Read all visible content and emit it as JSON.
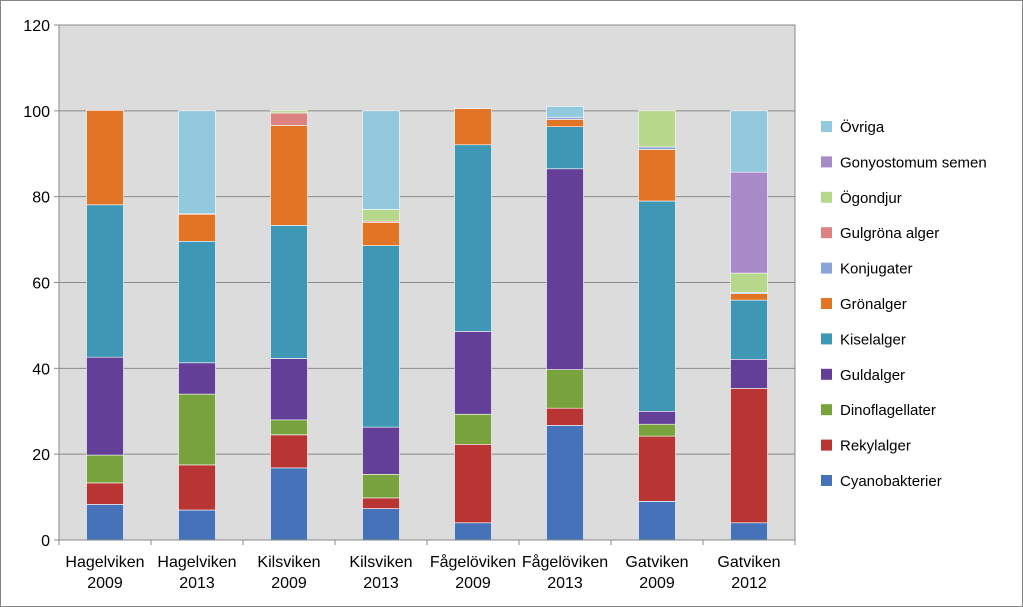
{
  "chart_data": {
    "type": "bar",
    "stacked": true,
    "categories": [
      [
        "Hagelviken",
        "2009"
      ],
      [
        "Hagelviken",
        "2013"
      ],
      [
        "Kilsviken",
        "2009"
      ],
      [
        "Kilsviken",
        "2013"
      ],
      [
        "Fågelöviken",
        "2009"
      ],
      [
        "Fågelöviken",
        "2013"
      ],
      [
        "Gatviken",
        "2009"
      ],
      [
        "Gatviken",
        "2012"
      ]
    ],
    "ylim": [
      0,
      120
    ],
    "yticks": [
      "0",
      "20",
      "40",
      "60",
      "80",
      "100",
      "120"
    ],
    "grid": true,
    "plot_background": "#dcdcdc",
    "legend_position": "right",
    "series": [
      {
        "name": "Cyanobakterier",
        "color": "#4572b8",
        "values": [
          8.3,
          7.0,
          16.8,
          7.3,
          4.0,
          26.7,
          9.0,
          4.0
        ]
      },
      {
        "name": "Rekylalger",
        "color": "#b93533",
        "values": [
          5.0,
          10.5,
          7.7,
          2.5,
          18.3,
          4.0,
          15.2,
          31.3
        ]
      },
      {
        "name": "Dinoflagellater",
        "color": "#78a33c",
        "values": [
          6.5,
          16.5,
          3.5,
          5.5,
          7.0,
          9.0,
          2.8,
          0
        ]
      },
      {
        "name": "Guldalger",
        "color": "#633f98",
        "values": [
          22.8,
          7.3,
          14.3,
          11.0,
          19.3,
          46.8,
          3.0,
          6.8
        ]
      },
      {
        "name": "Kiselalger",
        "color": "#3e98b5",
        "values": [
          35.5,
          28.3,
          31.0,
          42.3,
          43.5,
          9.8,
          49.0,
          13.8
        ]
      },
      {
        "name": "Grönalger",
        "color": "#e17425",
        "values": [
          22.0,
          6.3,
          23.3,
          5.4,
          8.4,
          1.7,
          12.0,
          1.5
        ]
      },
      {
        "name": "Konjugater",
        "color": "#8aa6d8",
        "values": [
          0,
          0,
          0,
          0,
          0,
          0.5,
          0.6,
          0.3
        ]
      },
      {
        "name": "Gulgröna alger",
        "color": "#dc8283",
        "values": [
          0,
          0.1,
          2.9,
          0.3,
          0,
          0,
          0,
          0
        ]
      },
      {
        "name": "Ögondjur",
        "color": "#b7d88a",
        "values": [
          0,
          0,
          0.5,
          2.7,
          0,
          0,
          8.4,
          4.5
        ]
      },
      {
        "name": "Gonyostomum semen",
        "color": "#a88ac8",
        "values": [
          0,
          0,
          0,
          0,
          0,
          0,
          0,
          23.5
        ]
      },
      {
        "name": "Övriga",
        "color": "#93c9dd",
        "values": [
          0,
          24.0,
          0,
          23.0,
          0,
          2.5,
          0,
          14.3
        ]
      }
    ]
  }
}
